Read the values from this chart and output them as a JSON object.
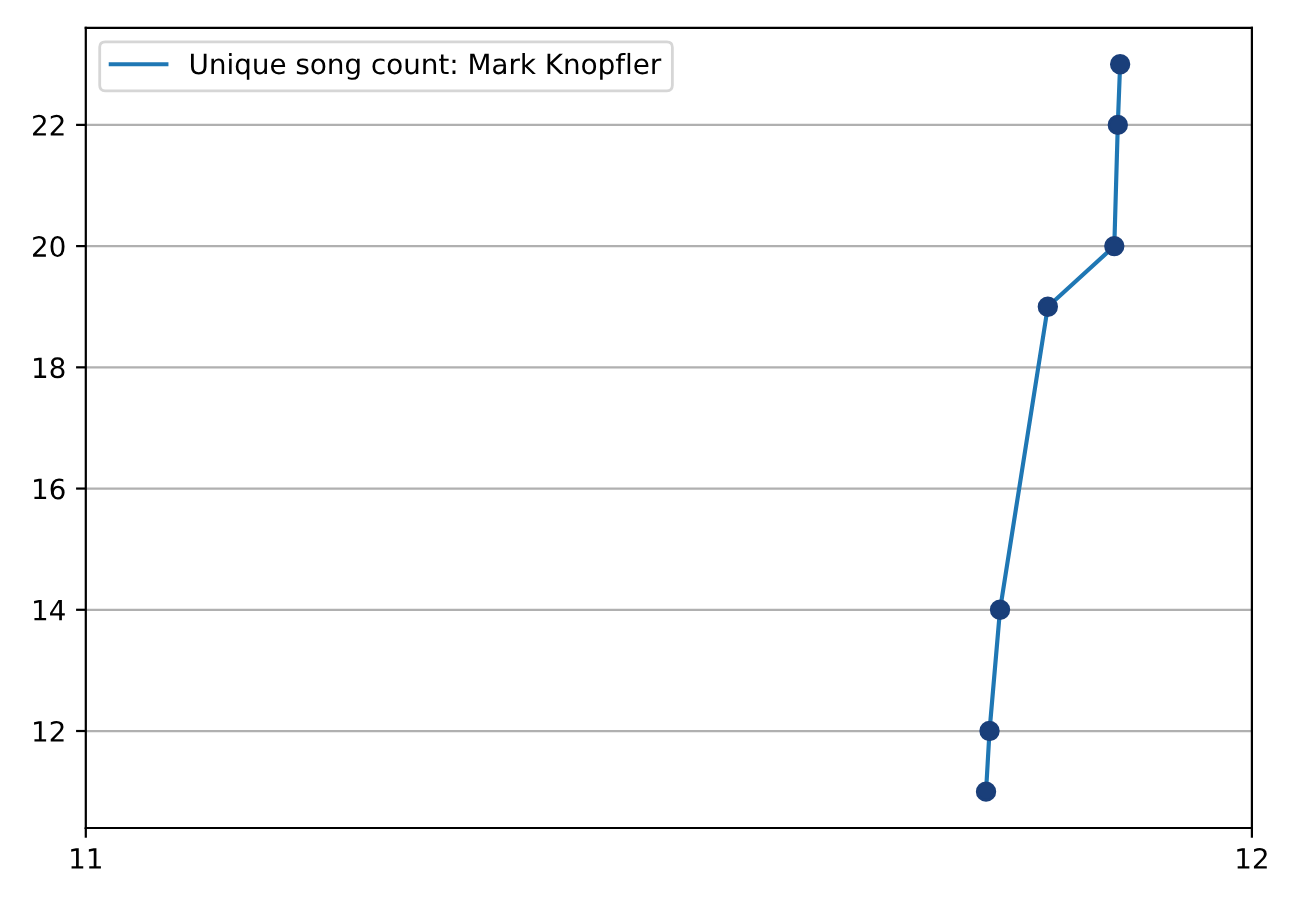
{
  "chart_data": {
    "type": "line",
    "xlim": [
      11,
      12
    ],
    "xticks": [
      11,
      12
    ],
    "ylim": [
      10.4,
      23.6
    ],
    "yticks": [
      12,
      14,
      16,
      18,
      20,
      22
    ],
    "grid": "y",
    "legend": "top left",
    "series": [
      {
        "name": "Unique song count: Mark Knopfler",
        "color": "#1f77b4",
        "x": [
          11.772,
          11.775,
          11.784,
          11.825,
          11.882,
          11.885,
          11.887
        ],
        "values": [
          11,
          12,
          14,
          19,
          20,
          22,
          23
        ]
      },
      {
        "type": "scatter",
        "marker": "circle",
        "color": "#1a3f7a",
        "x": [
          11.772,
          11.775,
          11.784,
          11.825,
          11.882,
          11.885,
          11.887
        ],
        "values": [
          11,
          12,
          14,
          19,
          20,
          22,
          23
        ]
      }
    ]
  }
}
